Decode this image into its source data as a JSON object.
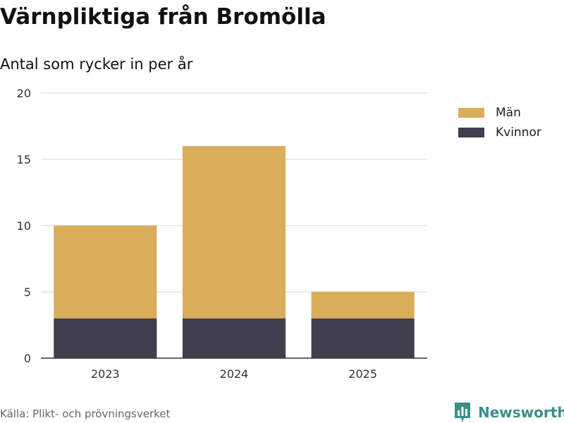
{
  "header": {
    "title": "Värnpliktiga från Bromölla",
    "subtitle": "Antal som rycker in per år"
  },
  "chart_data": {
    "type": "bar",
    "stacked": true,
    "categories": [
      "2023",
      "2024",
      "2025"
    ],
    "series": [
      {
        "name": "Kvinnor",
        "values": [
          3,
          3,
          3
        ],
        "color": "#413f4e"
      },
      {
        "name": "Män",
        "values": [
          7,
          13,
          2
        ],
        "color": "#d9ad5b"
      }
    ],
    "ylim": [
      0,
      20
    ],
    "yticks": [
      0,
      5,
      10,
      15,
      20
    ],
    "grid": true,
    "legend_position": "right",
    "legend_order": [
      "Män",
      "Kvinnor"
    ],
    "xlabel": "",
    "ylabel": ""
  },
  "footer": {
    "source": "Källa: Plikt- och prövningsverket",
    "brand": "Newsworthy",
    "brand_color": "#3a8f8b"
  }
}
